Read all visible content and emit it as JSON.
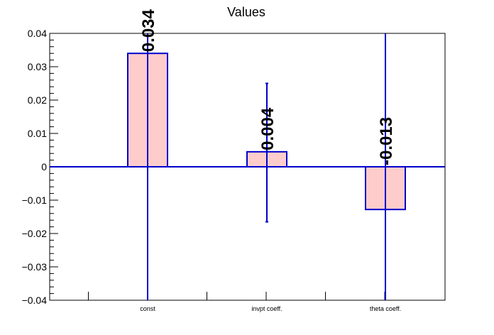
{
  "chart_data": {
    "type": "bar",
    "title": "Values",
    "xlabel": "",
    "ylabel": "",
    "categories": [
      "const",
      "invpt coeff.",
      "theta coeff."
    ],
    "values": [
      0.034,
      0.0045,
      -0.0128
    ],
    "value_labels": [
      "0.034",
      "0.004",
      "-0.013"
    ],
    "error_low": [
      -0.04,
      -0.0165,
      -0.04
    ],
    "error_high": [
      0.04,
      0.025,
      0.04
    ],
    "ylim": [
      -0.04,
      0.04
    ],
    "y_ticks": [
      -0.04,
      -0.03,
      -0.02,
      -0.01,
      0,
      0.01,
      0.02,
      0.03,
      0.04
    ],
    "y_tick_labels": [
      "−0.04",
      "−0.03",
      "−0.02",
      "−0.01",
      "0",
      "0.01",
      "0.02",
      "0.03",
      "0.04"
    ],
    "grid": false,
    "colors": {
      "bar_fill": "#ffcccc",
      "bar_edge": "#0000cc",
      "error": "#0000cc",
      "zero_line": "#0000cc"
    }
  }
}
